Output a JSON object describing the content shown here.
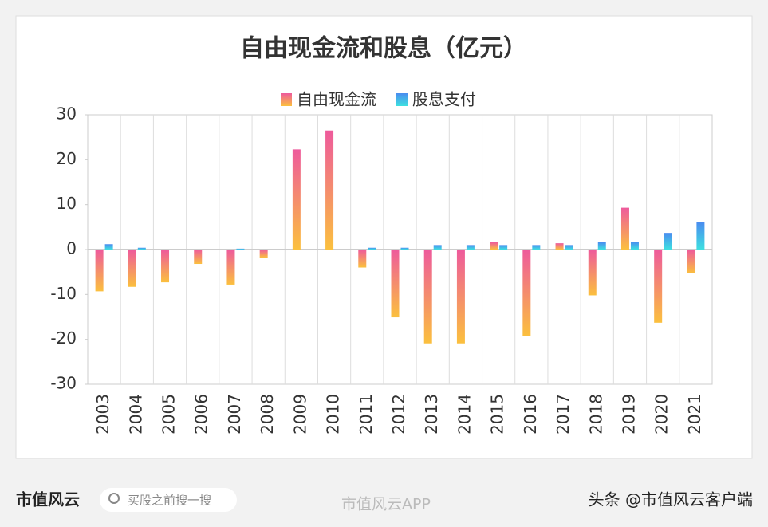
{
  "chart_data": {
    "type": "bar",
    "title": "自由现金流和股息（亿元）",
    "categories": [
      "2003",
      "2004",
      "2005",
      "2006",
      "2007",
      "2008",
      "2009",
      "2010",
      "2011",
      "2012",
      "2013",
      "2014",
      "2015",
      "2016",
      "2017",
      "2018",
      "2019",
      "2020",
      "2021"
    ],
    "series": [
      {
        "name": "自由现金流",
        "color": [
          "#ee5a9c",
          "#fbc03e"
        ],
        "values": [
          -9.3,
          -8.3,
          -7.3,
          -3.2,
          -7.8,
          -1.8,
          22.3,
          26.5,
          -4.0,
          -15.1,
          -20.9,
          -20.9,
          1.6,
          -19.3,
          1.4,
          -10.2,
          9.3,
          -16.3,
          -5.3
        ]
      },
      {
        "name": "股息支付",
        "color": [
          "#4a8cf0",
          "#3ee0e0"
        ],
        "values": [
          1.2,
          0.4,
          0,
          0,
          0.2,
          0,
          0,
          0,
          0.4,
          0.4,
          1.0,
          1.0,
          1.0,
          1.0,
          1.0,
          1.6,
          1.7,
          3.7,
          6.1
        ]
      }
    ],
    "ylim": [
      -30,
      30
    ],
    "yticks": [
      -30,
      -20,
      -10,
      0,
      10,
      20,
      30
    ],
    "grid": true,
    "legend": "top"
  },
  "footer": {
    "brand": "市值风云",
    "search": "买股之前搜一搜",
    "watermark": "市值风云APP",
    "credit": "头条 @市值风云客户端"
  }
}
